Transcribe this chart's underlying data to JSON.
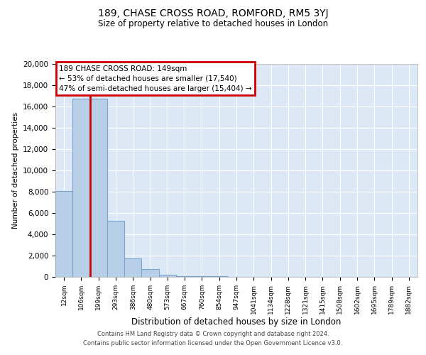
{
  "title1": "189, CHASE CROSS ROAD, ROMFORD, RM5 3YJ",
  "title2": "Size of property relative to detached houses in London",
  "xlabel": "Distribution of detached houses by size in London",
  "ylabel": "Number of detached properties",
  "annotation_line1": "189 CHASE CROSS ROAD: 149sqm",
  "annotation_line2": "← 53% of detached houses are smaller (17,540)",
  "annotation_line3": "47% of semi-detached houses are larger (15,404) →",
  "footnote1": "Contains HM Land Registry data © Crown copyright and database right 2024.",
  "footnote2": "Contains public sector information licensed under the Open Government Licence v3.0.",
  "bar_color": "#b8cfe8",
  "bar_edge_color": "#7aa3cc",
  "vline_color": "#cc0000",
  "annotation_box_color": "#cc0000",
  "background_color": "#dce8f5",
  "ylim_min": 0,
  "ylim_max": 20000,
  "categories": [
    "12sqm",
    "106sqm",
    "199sqm",
    "293sqm",
    "386sqm",
    "480sqm",
    "573sqm",
    "667sqm",
    "760sqm",
    "854sqm",
    "947sqm",
    "1041sqm",
    "1134sqm",
    "1228sqm",
    "1321sqm",
    "1415sqm",
    "1508sqm",
    "1602sqm",
    "1695sqm",
    "1789sqm",
    "1882sqm"
  ],
  "values": [
    8100,
    16700,
    16700,
    5300,
    1750,
    750,
    200,
    100,
    60,
    40,
    25,
    18,
    12,
    9,
    7,
    5,
    4,
    3,
    2,
    2,
    1
  ],
  "vline_position": 1.5,
  "yticks": [
    0,
    2000,
    4000,
    6000,
    8000,
    10000,
    12000,
    14000,
    16000,
    18000,
    20000
  ]
}
